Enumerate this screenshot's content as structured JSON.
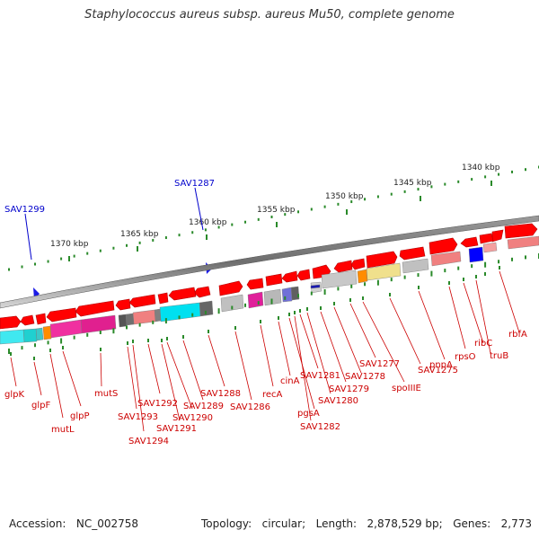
{
  "title": "Staphylococcus aureus subsp. aureus Mu50, complete genome",
  "footer": {
    "accession_label": "Accession:",
    "accession": "NC_002758",
    "topology_label": "Topology:",
    "topology": "circular;",
    "length_label": "Length:",
    "length": "2,878,529 bp;",
    "genes_label": "Genes:",
    "genes": "2,773"
  },
  "scale": {
    "ticks": [
      {
        "label": "1340 kbp"
      },
      {
        "label": "1345 kbp"
      },
      {
        "label": "1350 kbp"
      },
      {
        "label": "1355 kbp"
      },
      {
        "label": "1360 kbp"
      },
      {
        "label": "1365 kbp"
      },
      {
        "label": "1370 kbp"
      }
    ]
  },
  "highlights": [
    {
      "label": "SAV1299",
      "color": "#0000cc"
    },
    {
      "label": "SAV1287",
      "color": "#0000cc"
    }
  ],
  "gene_labels": [
    "glpK",
    "glpF",
    "glpP",
    "mutL",
    "mutS",
    "SAV1294",
    "SAV1293",
    "SAV1292",
    "SAV1291",
    "SAV1290",
    "SAV1289",
    "SAV1288",
    "SAV1286",
    "recA",
    "cinA",
    "SAV1282",
    "pgsA",
    "SAV1281",
    "SAV1280",
    "SAV1279",
    "SAV1278",
    "SAV1277",
    "spoIIIE",
    "SAV1275",
    "pnpA",
    "rpsO",
    "ribC",
    "truB",
    "rbfA"
  ],
  "colors": {
    "arrow": "#ff0000",
    "label": "#cc0000",
    "highlight": "#0000cc",
    "backbone": "#777777",
    "tick": "#2a8a2a"
  }
}
